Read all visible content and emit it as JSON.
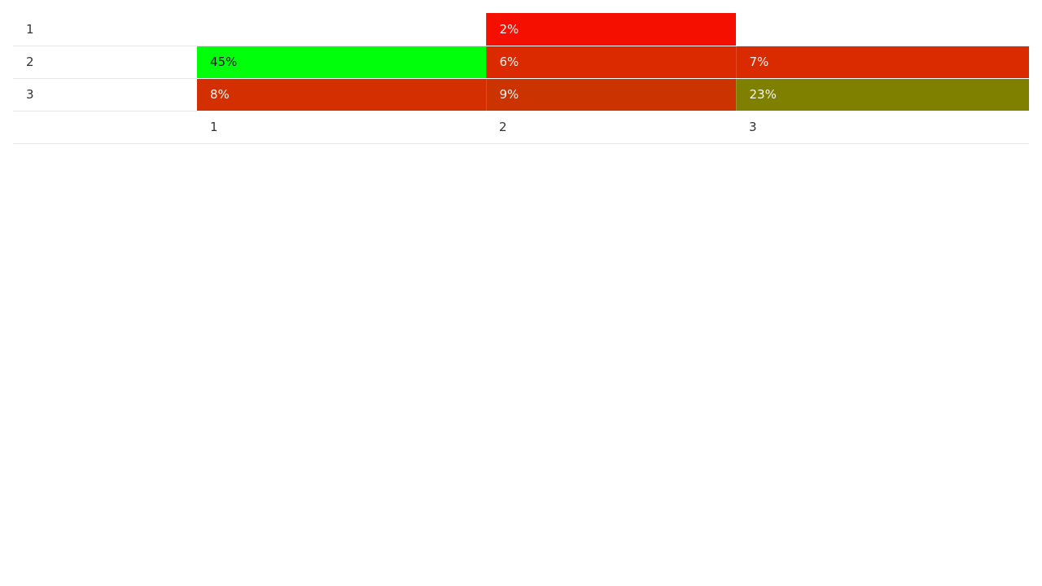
{
  "chart_data": {
    "type": "heatmap",
    "row_labels": [
      "1",
      "2",
      "3"
    ],
    "column_labels": [
      "1",
      "2",
      "3"
    ],
    "cells": [
      [
        {
          "value": null,
          "label": "",
          "color": ""
        },
        {
          "value": 2,
          "label": "2%",
          "color": "#f50f00",
          "text_color": "#f3f3f3"
        },
        {
          "value": null,
          "label": "",
          "color": ""
        }
      ],
      [
        {
          "value": 45,
          "label": "45%",
          "color": "#00ff0a",
          "text_color": "#1a1a1a"
        },
        {
          "value": 6,
          "label": "6%",
          "color": "#dc2a00",
          "text_color": "#f3f3f3"
        },
        {
          "value": 7,
          "label": "7%",
          "color": "#da2a00",
          "text_color": "#f3f3f3"
        }
      ],
      [
        {
          "value": 8,
          "label": "8%",
          "color": "#d32f00",
          "text_color": "#f3f3f3"
        },
        {
          "value": 9,
          "label": "9%",
          "color": "#cb3300",
          "text_color": "#f3f3f3"
        },
        {
          "value": 23,
          "label": "23%",
          "color": "#808000",
          "text_color": "#f3f3f3"
        }
      ]
    ],
    "color_scale": {
      "low": "#ff0000",
      "high": "#00ff00"
    }
  }
}
